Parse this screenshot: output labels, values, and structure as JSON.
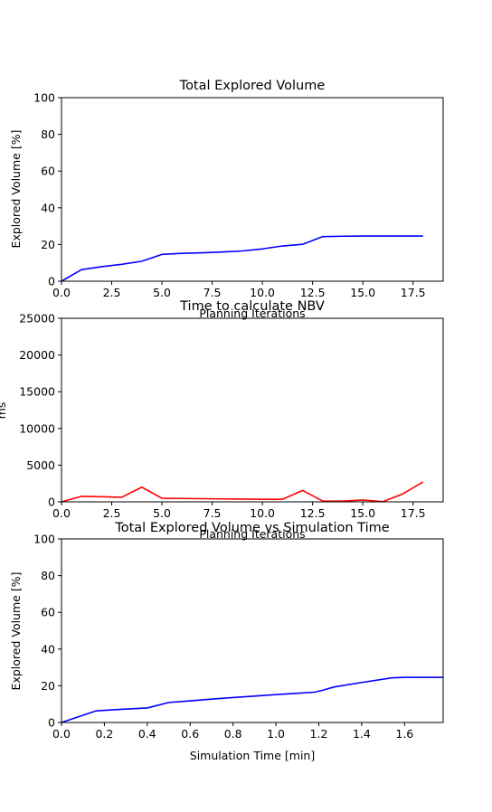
{
  "chart_data": [
    {
      "type": "line",
      "title": "Total Explored Volume",
      "xlabel": "Planning Iterations",
      "ylabel": "Explored Volume [%]",
      "xlim": [
        0,
        19
      ],
      "ylim": [
        0,
        100
      ],
      "xticks": [
        "0.0",
        "2.5",
        "5.0",
        "7.5",
        "10.0",
        "12.5",
        "15.0",
        "17.5"
      ],
      "yticks": [
        "0",
        "20",
        "40",
        "60",
        "80",
        "100"
      ],
      "grid": false,
      "series": [
        {
          "color": "#0000ff",
          "x": [
            0,
            1,
            2,
            3,
            4,
            5,
            6,
            7,
            8,
            9,
            10,
            11,
            12,
            13,
            14,
            15,
            16,
            17,
            18
          ],
          "y": [
            0,
            6.3,
            7.9,
            9.2,
            10.9,
            14.6,
            15.2,
            15.5,
            15.9,
            16.5,
            17.6,
            19.2,
            20.1,
            24.3,
            24.5,
            24.6,
            24.6,
            24.6,
            24.6
          ]
        }
      ]
    },
    {
      "type": "line",
      "title": "Time to calculate NBV",
      "xlabel": "Planning Iterations",
      "ylabel": "ms",
      "xlim": [
        0,
        19
      ],
      "ylim": [
        0,
        25000
      ],
      "xticks": [
        "0.0",
        "2.5",
        "5.0",
        "7.5",
        "10.0",
        "12.5",
        "15.0",
        "17.5"
      ],
      "yticks": [
        "0",
        "5000",
        "10000",
        "15000",
        "20000",
        "25000"
      ],
      "grid": false,
      "series": [
        {
          "color": "#ff0000",
          "x": [
            0,
            1,
            2,
            3,
            4,
            5,
            6,
            7,
            8,
            9,
            10,
            11,
            12,
            13,
            14,
            15,
            16,
            17,
            18
          ],
          "y": [
            0,
            750,
            700,
            620,
            2000,
            480,
            460,
            430,
            400,
            380,
            350,
            350,
            1550,
            120,
            100,
            250,
            30,
            1100,
            2700
          ]
        }
      ]
    },
    {
      "type": "line",
      "title": "Total Explored Volume vs Simulation Time",
      "xlabel": "Simulation Time [min]",
      "ylabel": "Explored Volume [%]",
      "xlim": [
        0,
        1.78
      ],
      "ylim": [
        0,
        100
      ],
      "xticks": [
        "0.0",
        "0.2",
        "0.4",
        "0.6",
        "0.8",
        "1.0",
        "1.2",
        "1.4",
        "1.6"
      ],
      "yticks": [
        "0",
        "20",
        "40",
        "60",
        "80",
        "100"
      ],
      "grid": false,
      "series": [
        {
          "color": "#0000ff",
          "x": [
            0,
            0.16,
            0.25,
            0.4,
            0.45,
            0.5,
            0.6,
            0.7,
            0.8,
            0.9,
            1.0,
            1.1,
            1.18,
            1.22,
            1.27,
            1.4,
            1.54,
            1.6,
            1.65,
            1.78
          ],
          "y": [
            0,
            6.3,
            7.0,
            7.9,
            9.4,
            10.9,
            11.8,
            12.7,
            13.6,
            14.4,
            15.2,
            15.9,
            16.5,
            17.6,
            19.3,
            21.8,
            24.3,
            24.6,
            24.6,
            24.6
          ]
        }
      ]
    }
  ]
}
